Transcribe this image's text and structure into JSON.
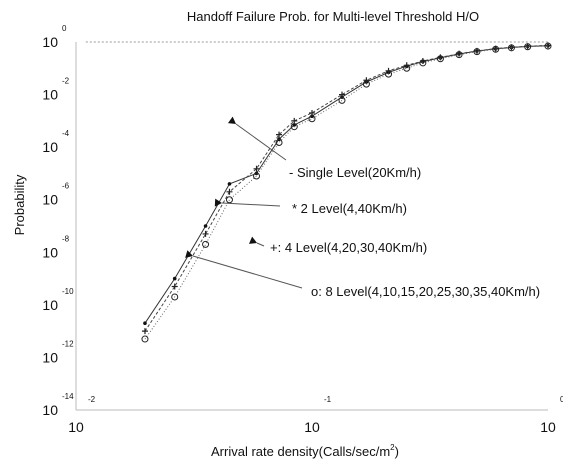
{
  "chart_data": {
    "type": "line",
    "title": "Handoff Failure Prob. for Multi-level Threshold H/O",
    "xlabel": "Arrival rate density(Calls/sec/m",
    "xlabel_sup": "2",
    "xlabel_close": ")",
    "ylabel": "Probability",
    "x_scale": "log",
    "y_scale": "log",
    "xlim": [
      0.01,
      1
    ],
    "ylim": [
      1e-14,
      1
    ],
    "grid": false,
    "x_ticks": [
      {
        "base": "10",
        "exp": "-2",
        "value": 0.01
      },
      {
        "base": "10",
        "exp": "-1",
        "value": 0.1
      },
      {
        "base": "10",
        "exp": "0",
        "value": 1
      }
    ],
    "y_ticks": [
      {
        "base": "10",
        "exp": "0",
        "value": 1
      },
      {
        "base": "10",
        "exp": "-2",
        "value": 0.01
      },
      {
        "base": "10",
        "exp": "-4",
        "value": 0.0001
      },
      {
        "base": "10",
        "exp": "-6",
        "value": 1e-06
      },
      {
        "base": "10",
        "exp": "-8",
        "value": 1e-08
      },
      {
        "base": "10",
        "exp": "-10",
        "value": 1e-10
      },
      {
        "base": "10",
        "exp": "-12",
        "value": 1e-12
      },
      {
        "base": "10",
        "exp": "-14",
        "value": 1e-14
      }
    ],
    "series": [
      {
        "name": "Single Level(20Km/h)",
        "marker": "-",
        "x": [
          0.011,
          0.02,
          0.05,
          0.1,
          0.2,
          0.5,
          1.0
        ],
        "y": [
          0.999,
          0.999,
          0.999,
          0.999,
          0.999,
          0.999,
          0.999
        ]
      },
      {
        "name": "2 Level(4,40Km/h)",
        "marker": "*",
        "x": [
          0.0196,
          0.0262,
          0.0354,
          0.0447,
          0.0582,
          0.0725,
          0.0841,
          0.1,
          0.134,
          0.17,
          0.211,
          0.252,
          0.295,
          0.35,
          0.42,
          0.5,
          0.6,
          0.7,
          0.82,
          1.0
        ],
        "y": [
          2e-11,
          1e-09,
          1e-07,
          4e-06,
          1e-05,
          0.0002,
          0.0007,
          0.0015,
          0.008,
          0.03,
          0.07,
          0.12,
          0.18,
          0.25,
          0.35,
          0.45,
          0.55,
          0.62,
          0.68,
          0.72
        ]
      },
      {
        "name": "4 Level(4,20,30,40Km/h)",
        "marker": "+",
        "x": [
          0.0196,
          0.0262,
          0.0354,
          0.0447,
          0.0582,
          0.0725,
          0.0841,
          0.1,
          0.134,
          0.17,
          0.211,
          0.252,
          0.295,
          0.35,
          0.42,
          0.5,
          0.6,
          0.7,
          0.82,
          1.0
        ],
        "y": [
          1e-11,
          5e-10,
          5e-08,
          2e-06,
          1.5e-05,
          0.0003,
          0.001,
          0.002,
          0.01,
          0.035,
          0.08,
          0.13,
          0.19,
          0.26,
          0.36,
          0.46,
          0.56,
          0.63,
          0.69,
          0.74
        ]
      },
      {
        "name": "8 Level(4,10,15,20,25,30,35,40Km/h)",
        "marker": "o",
        "x": [
          0.0196,
          0.0262,
          0.0354,
          0.0447,
          0.0582,
          0.0725,
          0.0841,
          0.1,
          0.134,
          0.17,
          0.211,
          0.252,
          0.295,
          0.35,
          0.42,
          0.5,
          0.6,
          0.7,
          0.82,
          1.0
        ],
        "y": [
          5e-12,
          2e-10,
          2e-08,
          1e-06,
          8e-06,
          0.00015,
          0.0006,
          0.0012,
          0.006,
          0.025,
          0.06,
          0.1,
          0.16,
          0.23,
          0.33,
          0.43,
          0.53,
          0.6,
          0.66,
          0.7
        ]
      }
    ],
    "legend": [
      {
        "marker": "-",
        "text": "Single Level(20Km/h)"
      },
      {
        "marker": "*",
        "text": "2 Level(4,40Km/h)"
      },
      {
        "marker": "+:",
        "text": "4 Level(4,20,30,40Km/h)"
      },
      {
        "marker": "o:",
        "text": "8 Level(4,10,15,20,25,30,35,40Km/h)"
      }
    ],
    "legend_placement": "right-middle, with arrows pointing to curves"
  }
}
